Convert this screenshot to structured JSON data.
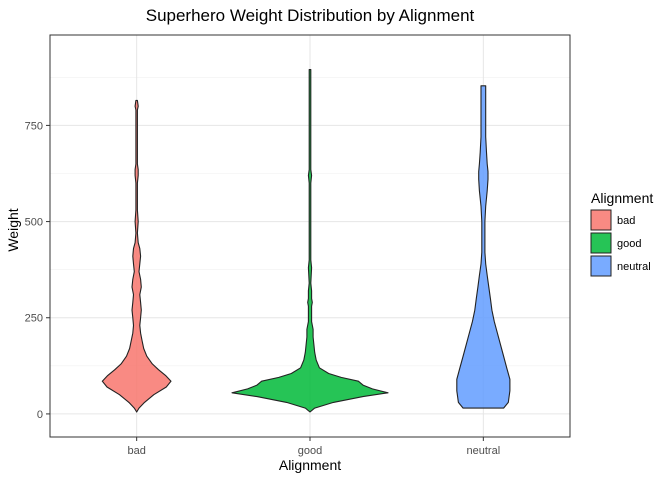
{
  "chart_data": {
    "type": "violin",
    "title": "Superhero Weight Distribution by Alignment",
    "xlabel": "Alignment",
    "ylabel": "Weight",
    "categories": [
      "bad",
      "good",
      "neutral"
    ],
    "ylim": [
      -60,
      985
    ],
    "yticks": [
      0,
      250,
      500,
      750
    ],
    "grid": true,
    "legend": {
      "title": "Alignment",
      "position": "right",
      "entries": [
        "bad",
        "good",
        "neutral"
      ]
    },
    "colors": {
      "bad": "#F8766D",
      "good": "#00BA38",
      "neutral": "#619CFF"
    },
    "series": [
      {
        "category": "bad",
        "profile": [
          [
            5,
            0
          ],
          [
            15,
            3
          ],
          [
            30,
            10
          ],
          [
            50,
            22
          ],
          [
            70,
            38
          ],
          [
            85,
            44
          ],
          [
            100,
            37
          ],
          [
            115,
            28
          ],
          [
            130,
            20
          ],
          [
            150,
            13
          ],
          [
            170,
            9
          ],
          [
            190,
            7
          ],
          [
            210,
            5
          ],
          [
            230,
            4
          ],
          [
            250,
            5
          ],
          [
            270,
            6
          ],
          [
            290,
            5
          ],
          [
            310,
            4
          ],
          [
            330,
            6
          ],
          [
            350,
            5
          ],
          [
            370,
            3
          ],
          [
            390,
            4
          ],
          [
            410,
            5
          ],
          [
            430,
            4
          ],
          [
            445,
            2
          ],
          [
            470,
            1
          ],
          [
            500,
            2
          ],
          [
            530,
            1
          ],
          [
            560,
            1
          ],
          [
            600,
            1
          ],
          [
            620,
            2
          ],
          [
            635,
            2
          ],
          [
            650,
            1
          ],
          [
            700,
            1
          ],
          [
            750,
            1
          ],
          [
            790,
            1
          ],
          [
            800,
            2
          ],
          [
            815,
            1
          ]
        ]
      },
      {
        "category": "good",
        "profile": [
          [
            5,
            0
          ],
          [
            15,
            6
          ],
          [
            30,
            30
          ],
          [
            45,
            68
          ],
          [
            55,
            100
          ],
          [
            65,
            80
          ],
          [
            75,
            68
          ],
          [
            85,
            62
          ],
          [
            95,
            40
          ],
          [
            105,
            24
          ],
          [
            120,
            12
          ],
          [
            140,
            8
          ],
          [
            160,
            6
          ],
          [
            180,
            5
          ],
          [
            200,
            4
          ],
          [
            220,
            4
          ],
          [
            240,
            2
          ],
          [
            260,
            2
          ],
          [
            280,
            2
          ],
          [
            290,
            3
          ],
          [
            300,
            2
          ],
          [
            320,
            2
          ],
          [
            340,
            1
          ],
          [
            380,
            2
          ],
          [
            400,
            1
          ],
          [
            440,
            1
          ],
          [
            460,
            1
          ],
          [
            480,
            1
          ],
          [
            500,
            1
          ],
          [
            550,
            1
          ],
          [
            600,
            1
          ],
          [
            620,
            2
          ],
          [
            635,
            1
          ],
          [
            700,
            1
          ],
          [
            800,
            1
          ],
          [
            880,
            1
          ],
          [
            895,
            1
          ]
        ]
      },
      {
        "category": "neutral",
        "profile": [
          [
            15,
            26
          ],
          [
            30,
            32
          ],
          [
            60,
            34
          ],
          [
            90,
            34
          ],
          [
            120,
            30
          ],
          [
            150,
            26
          ],
          [
            180,
            22
          ],
          [
            210,
            18
          ],
          [
            240,
            14
          ],
          [
            270,
            11
          ],
          [
            300,
            9
          ],
          [
            330,
            7
          ],
          [
            360,
            5
          ],
          [
            390,
            3
          ],
          [
            420,
            2
          ],
          [
            460,
            2
          ],
          [
            500,
            2
          ],
          [
            540,
            3
          ],
          [
            580,
            5
          ],
          [
            610,
            6
          ],
          [
            630,
            6
          ],
          [
            650,
            5
          ],
          [
            680,
            4
          ],
          [
            720,
            3
          ],
          [
            760,
            3
          ],
          [
            800,
            3
          ],
          [
            835,
            3
          ],
          [
            853,
            3
          ]
        ]
      }
    ]
  }
}
